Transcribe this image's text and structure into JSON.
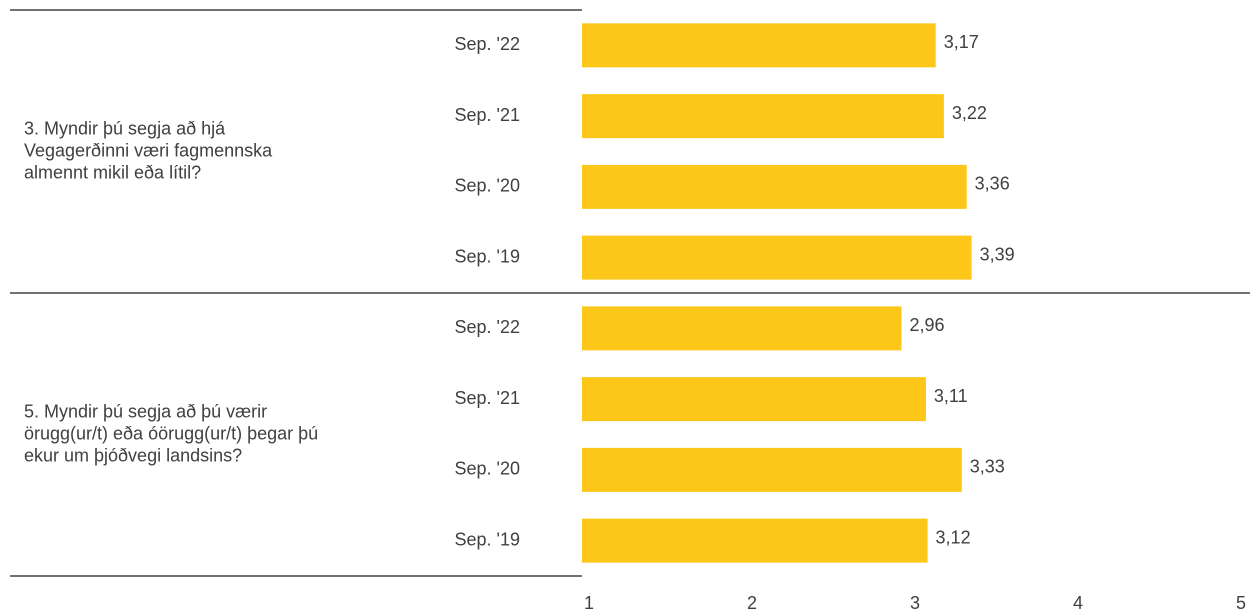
{
  "chart_data": {
    "type": "bar",
    "groups": [
      {
        "label": [
          "3. Myndir þú segja að hjá",
          "Vegagerðinni væri fagmennska",
          "almennt mikil eða lítil?"
        ],
        "categories": [
          "Sep. '22",
          "Sep. '21",
          "Sep. '20",
          "Sep. '19"
        ],
        "values": [
          3.17,
          3.22,
          3.36,
          3.39
        ],
        "value_labels": [
          "3,17",
          "3,22",
          "3,36",
          "3,39"
        ]
      },
      {
        "label": [
          "5. Myndir þú segja að þú værir",
          "örugg(ur/t) eða óörugg(ur/t) þegar þú",
          "ekur um þjóðvegi landsins?"
        ],
        "categories": [
          "Sep. '22",
          "Sep. '21",
          "Sep. '20",
          "Sep. '19"
        ],
        "values": [
          2.96,
          3.11,
          3.33,
          3.12
        ],
        "value_labels": [
          "2,96",
          "3,11",
          "3,33",
          "3,12"
        ]
      }
    ],
    "color": "#fcc719",
    "xlim": [
      1,
      5
    ],
    "xticks": [
      1,
      2,
      3,
      4,
      5
    ]
  }
}
